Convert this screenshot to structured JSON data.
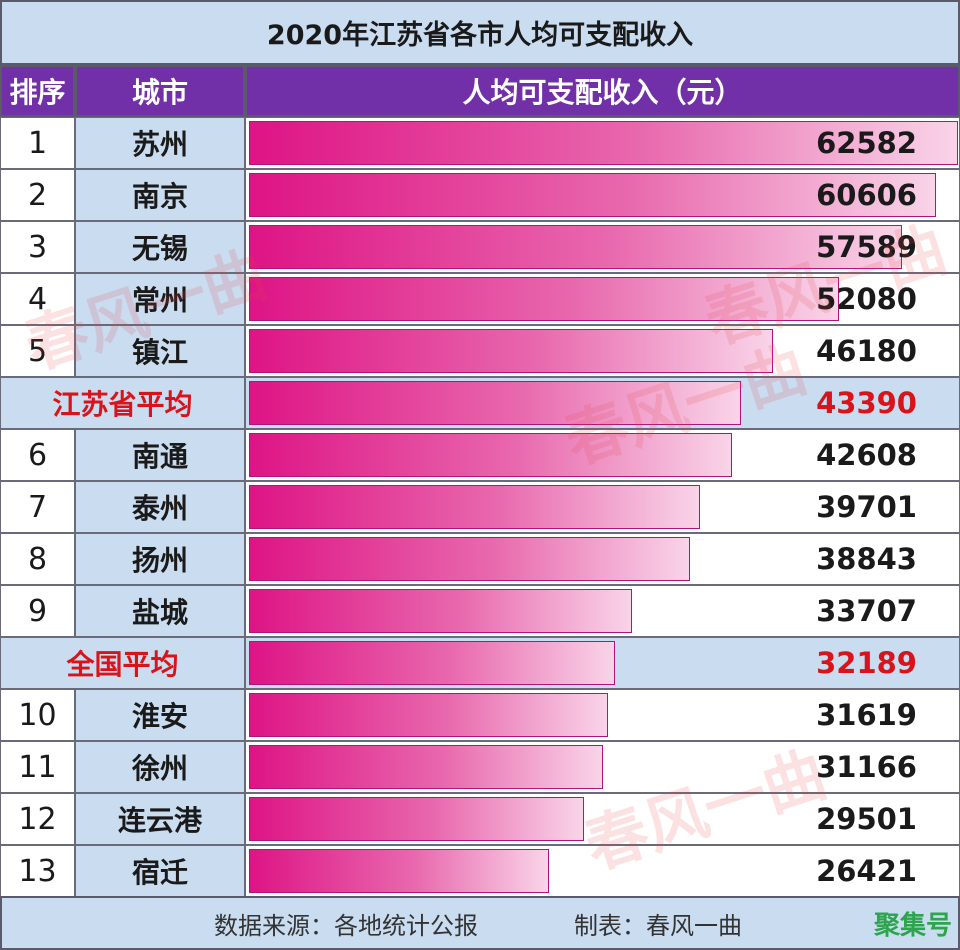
{
  "title": "2020年江苏省各市人均可支配收入",
  "headers": {
    "rank": "排序",
    "city": "城市",
    "income": "人均可支配收入（元）"
  },
  "chart_data": {
    "type": "bar",
    "orientation": "horizontal",
    "title": "2020年江苏省各市人均可支配收入",
    "categories": [
      "苏州",
      "南京",
      "无锡",
      "常州",
      "镇江",
      "江苏省平均",
      "南通",
      "泰州",
      "扬州",
      "盐城",
      "全国平均",
      "淮安",
      "徐州",
      "连云港",
      "宿迁"
    ],
    "rows": [
      {
        "rank": "1",
        "city": "苏州",
        "value": 62582,
        "avg": false
      },
      {
        "rank": "2",
        "city": "南京",
        "value": 60606,
        "avg": false
      },
      {
        "rank": "3",
        "city": "无锡",
        "value": 57589,
        "avg": false
      },
      {
        "rank": "4",
        "city": "常州",
        "value": 52080,
        "avg": false
      },
      {
        "rank": "5",
        "city": "镇江",
        "value": 46180,
        "avg": false
      },
      {
        "rank": "",
        "city": "江苏省平均",
        "value": 43390,
        "avg": true
      },
      {
        "rank": "6",
        "city": "南通",
        "value": 42608,
        "avg": false
      },
      {
        "rank": "7",
        "city": "泰州",
        "value": 39701,
        "avg": false
      },
      {
        "rank": "8",
        "city": "扬州",
        "value": 38843,
        "avg": false
      },
      {
        "rank": "9",
        "city": "盐城",
        "value": 33707,
        "avg": false
      },
      {
        "rank": "",
        "city": "全国平均",
        "value": 32189,
        "avg": true
      },
      {
        "rank": "10",
        "city": "淮安",
        "value": 31619,
        "avg": false
      },
      {
        "rank": "11",
        "city": "徐州",
        "value": 31166,
        "avg": false
      },
      {
        "rank": "12",
        "city": "连云港",
        "value": 29501,
        "avg": false
      },
      {
        "rank": "13",
        "city": "宿迁",
        "value": 26421,
        "avg": false
      }
    ],
    "xlim": [
      0,
      62582
    ],
    "grid": false
  },
  "footer": {
    "source": "数据来源：各地统计公报",
    "maker": "制表：春风一曲",
    "brand": "聚集号"
  },
  "watermark_text": "春风一曲",
  "colors": {
    "header_bg": "#7130a8",
    "label_bg": "#c9dcf0",
    "bar_start": "#de1485",
    "bar_end": "#f9d4e8",
    "highlight_text": "#d8141a"
  }
}
